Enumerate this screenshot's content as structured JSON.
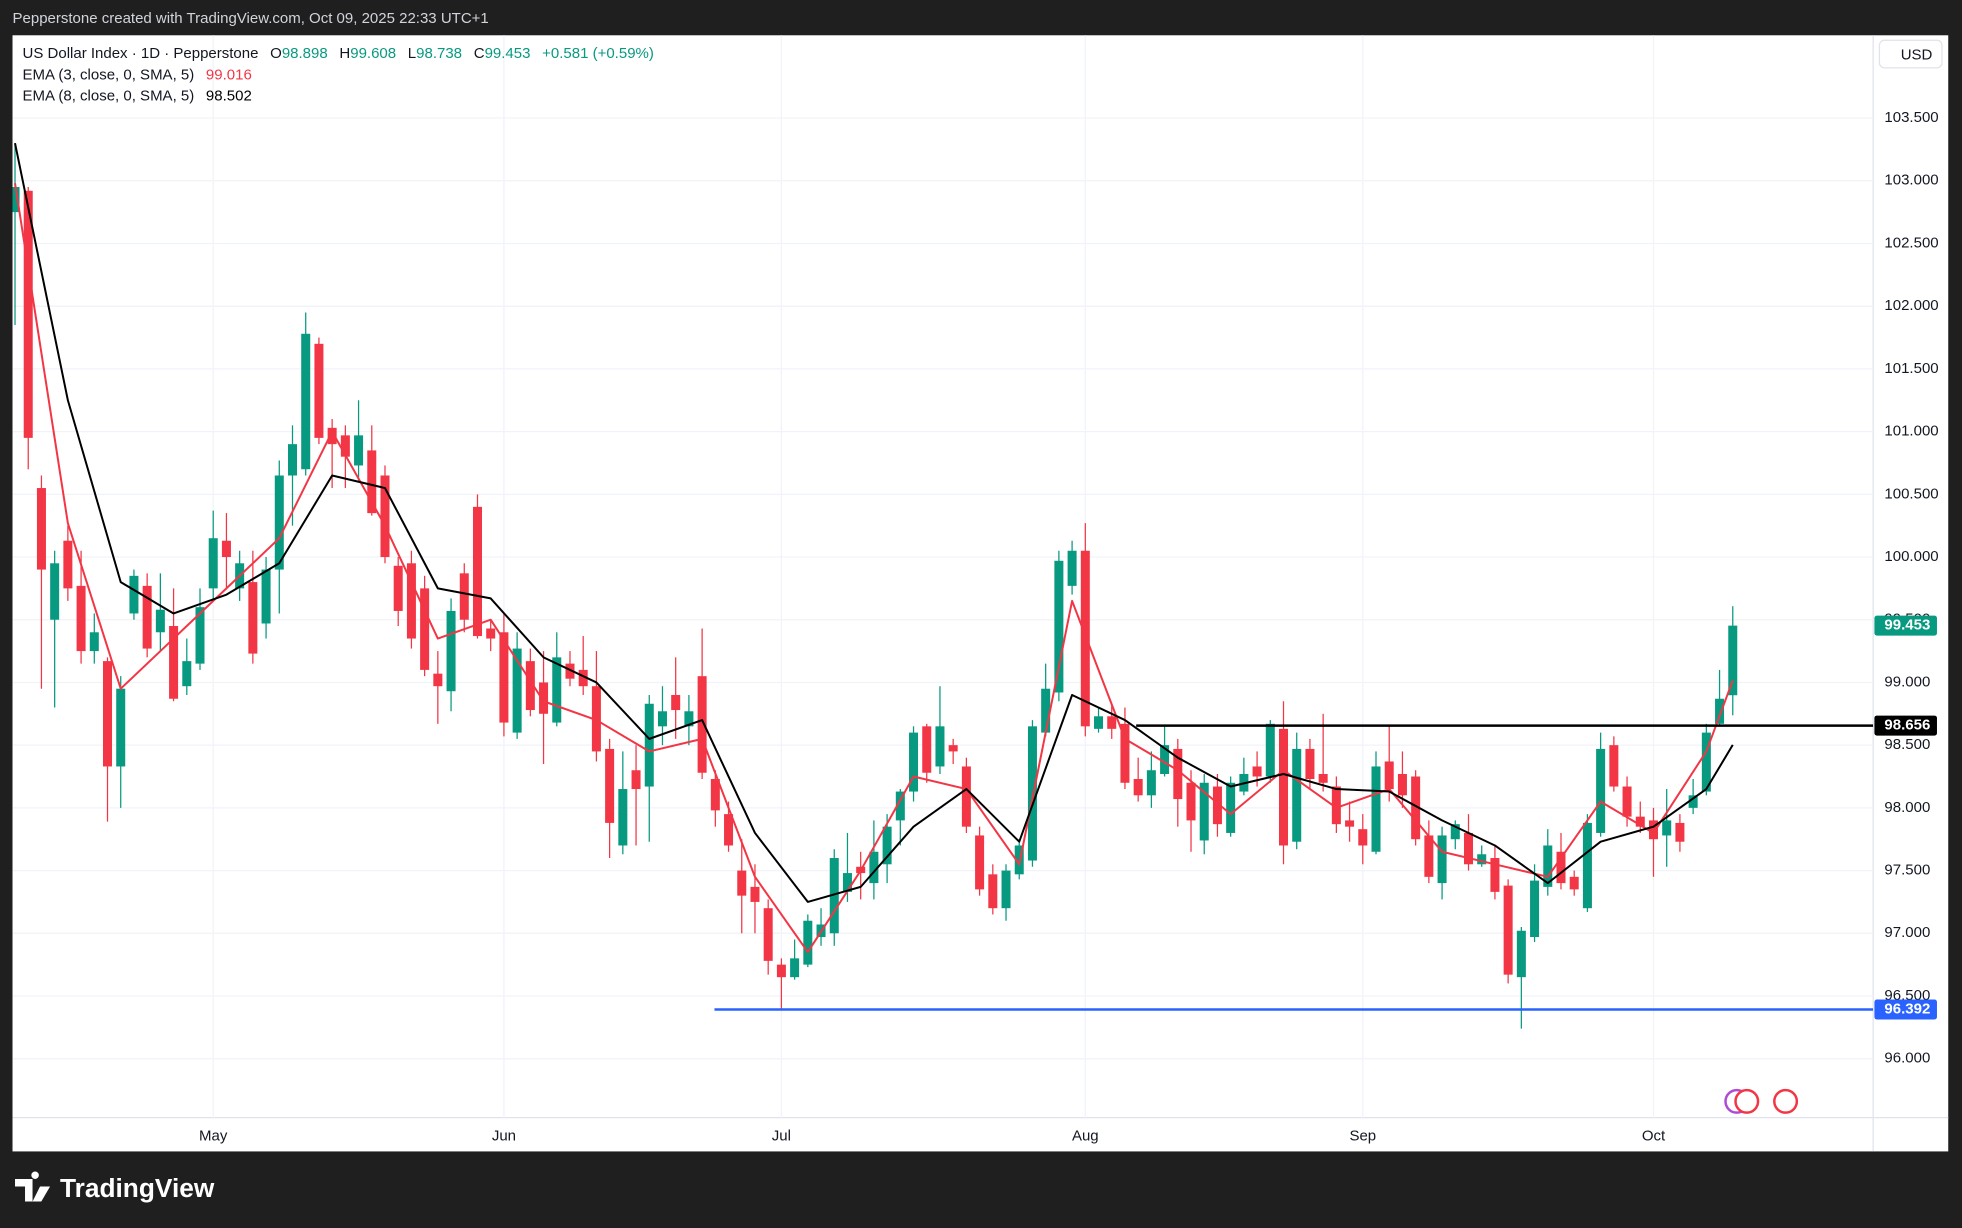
{
  "header": {
    "attribution": "Pepperstone created with TradingView.com, Oct 09, 2025 22:33 UTC+1",
    "brand": "TradingView"
  },
  "chart_data": {
    "type": "candlestick",
    "title": "US Dollar Index · 1D · Pepperstone",
    "currency": "USD",
    "ohlc_labels": [
      "O",
      "H",
      "L",
      "C"
    ],
    "change_label": "+0.581 (+0.59%)",
    "categories": [
      null,
      null,
      null,
      null,
      null,
      null,
      null,
      null,
      null,
      null,
      null,
      null,
      null,
      null,
      null,
      "May",
      null,
      null,
      null,
      null,
      null,
      null,
      null,
      null,
      null,
      null,
      null,
      null,
      null,
      null,
      null,
      null,
      null,
      null,
      null,
      null,
      null,
      "Jun",
      null,
      null,
      null,
      null,
      null,
      null,
      null,
      null,
      null,
      null,
      null,
      null,
      null,
      null,
      null,
      null,
      null,
      null,
      null,
      null,
      "Jul",
      null,
      null,
      null,
      null,
      null,
      null,
      null,
      null,
      null,
      null,
      null,
      null,
      null,
      null,
      null,
      null,
      null,
      null,
      null,
      null,
      null,
      null,
      "Aug",
      null,
      null,
      null,
      null,
      null,
      null,
      null,
      null,
      null,
      null,
      null,
      null,
      null,
      null,
      null,
      null,
      null,
      null,
      null,
      null,
      "Sep",
      null,
      null,
      null,
      null,
      null,
      null,
      null,
      null,
      null,
      null,
      null,
      null,
      null,
      null,
      null,
      null,
      null,
      null,
      null,
      null,
      null,
      "Oct",
      null,
      null,
      null,
      null,
      null,
      null
    ],
    "open": [
      102.75,
      102.92,
      100.55,
      99.5,
      100.13,
      99.77,
      99.25,
      99.17,
      98.33,
      99.55,
      99.77,
      99.4,
      99.45,
      98.97,
      99.15,
      99.75,
      100.13,
      99.75,
      99.8,
      99.47,
      99.9,
      100.65,
      100.7,
      101.7,
      101.03,
      100.97,
      100.73,
      100.85,
      100.65,
      99.93,
      99.95,
      99.75,
      99.07,
      98.93,
      99.87,
      100.4,
      99.43,
      99.4,
      98.6,
      99.17,
      99.0,
      98.68,
      99.15,
      99.1,
      98.97,
      98.47,
      97.7,
      98.3,
      98.17,
      98.65,
      98.9,
      98.65,
      99.05,
      98.23,
      97.95,
      97.5,
      97.37,
      97.2,
      96.75,
      96.65,
      96.75,
      96.97,
      97.0,
      97.33,
      97.53,
      97.4,
      97.55,
      97.9,
      98.13,
      98.65,
      98.33,
      98.5,
      98.33,
      97.78,
      97.47,
      97.2,
      97.47,
      97.58,
      98.6,
      98.92,
      99.77,
      100.05,
      98.63,
      98.73,
      98.67,
      98.23,
      98.1,
      98.27,
      98.47,
      98.2,
      97.74,
      98.17,
      97.8,
      98.13,
      98.33,
      98.25,
      98.63,
      97.73,
      98.47,
      98.27,
      98.17,
      97.9,
      97.83,
      97.65,
      98.37,
      98.27,
      98.25,
      97.78,
      97.4,
      97.75,
      97.8,
      97.55,
      97.6,
      97.38,
      96.65,
      96.97,
      97.37,
      97.65,
      97.45,
      97.2,
      97.8,
      98.5,
      98.17,
      97.93,
      97.9,
      97.78,
      97.88,
      98.0,
      98.13,
      98.67,
      98.898
    ],
    "high": [
      103.3,
      102.95,
      100.65,
      100.05,
      100.25,
      100.05,
      99.55,
      99.2,
      99.05,
      99.9,
      99.87,
      99.87,
      99.75,
      99.35,
      99.75,
      100.37,
      100.35,
      100.05,
      100.05,
      100.0,
      100.77,
      101.05,
      101.95,
      101.75,
      101.1,
      101.05,
      101.25,
      101.05,
      100.73,
      100.0,
      100.05,
      99.85,
      99.25,
      99.67,
      99.95,
      100.5,
      99.5,
      99.55,
      99.4,
      99.27,
      99.25,
      99.4,
      99.25,
      99.37,
      99.25,
      98.55,
      98.45,
      98.5,
      98.9,
      98.97,
      99.2,
      98.9,
      99.43,
      98.3,
      98.05,
      97.75,
      97.55,
      97.27,
      96.8,
      96.95,
      97.15,
      97.2,
      97.67,
      97.8,
      97.65,
      97.9,
      97.95,
      98.15,
      98.65,
      98.67,
      98.97,
      98.55,
      98.4,
      97.85,
      97.55,
      97.55,
      97.75,
      98.7,
      99.15,
      100.05,
      100.13,
      100.27,
      98.8,
      98.83,
      98.8,
      98.4,
      98.45,
      98.65,
      98.55,
      98.3,
      98.27,
      98.27,
      98.25,
      98.4,
      98.45,
      98.7,
      98.85,
      98.6,
      98.55,
      98.75,
      98.25,
      98.05,
      97.95,
      98.45,
      98.65,
      98.45,
      98.3,
      97.9,
      97.85,
      97.9,
      97.95,
      97.7,
      97.7,
      97.43,
      97.05,
      97.55,
      97.83,
      97.8,
      97.5,
      97.95,
      98.6,
      98.57,
      98.25,
      98.05,
      98.0,
      98.15,
      97.95,
      98.23,
      98.67,
      99.1,
      99.608
    ],
    "low": [
      101.85,
      100.7,
      98.95,
      98.8,
      99.65,
      99.15,
      99.15,
      97.89,
      98.0,
      99.5,
      99.2,
      99.25,
      98.85,
      98.9,
      99.1,
      99.65,
      99.75,
      99.65,
      99.15,
      99.35,
      99.55,
      100.25,
      100.65,
      100.9,
      100.55,
      100.55,
      100.6,
      100.33,
      99.95,
      99.45,
      99.27,
      99.05,
      98.67,
      98.77,
      99.4,
      99.35,
      99.25,
      98.57,
      98.55,
      98.73,
      98.35,
      98.65,
      98.97,
      98.9,
      98.37,
      97.6,
      97.63,
      97.7,
      97.73,
      98.5,
      98.55,
      98.5,
      98.23,
      97.85,
      97.65,
      97.0,
      97.0,
      96.67,
      96.392,
      96.63,
      96.73,
      96.9,
      96.9,
      97.25,
      97.27,
      97.27,
      97.4,
      97.7,
      98.05,
      98.2,
      98.27,
      98.35,
      97.8,
      97.3,
      97.15,
      97.1,
      97.43,
      97.53,
      98.57,
      98.85,
      99.7,
      98.57,
      98.6,
      98.55,
      98.15,
      98.05,
      98.0,
      98.25,
      97.85,
      97.65,
      97.63,
      97.77,
      97.77,
      98.1,
      98.17,
      98.2,
      97.55,
      97.67,
      98.15,
      98.13,
      97.8,
      97.73,
      97.55,
      97.63,
      98.05,
      98.0,
      97.7,
      97.4,
      97.27,
      97.67,
      97.5,
      97.53,
      97.27,
      96.6,
      96.24,
      96.93,
      97.3,
      97.35,
      97.3,
      97.17,
      97.77,
      98.13,
      97.85,
      97.8,
      97.45,
      97.53,
      97.65,
      97.95,
      98.1,
      98.65,
      98.738
    ],
    "close": [
      102.95,
      100.95,
      99.9,
      99.95,
      99.75,
      99.25,
      99.4,
      98.33,
      98.95,
      99.85,
      99.27,
      99.58,
      98.87,
      99.17,
      99.6,
      100.15,
      100.0,
      99.95,
      99.23,
      99.9,
      100.65,
      100.9,
      101.78,
      100.95,
      100.9,
      100.8,
      100.97,
      100.35,
      100.0,
      99.57,
      99.35,
      99.1,
      98.97,
      99.57,
      99.5,
      99.37,
      99.35,
      98.68,
      99.27,
      98.78,
      98.75,
      99.2,
      99.03,
      98.97,
      98.45,
      97.88,
      98.15,
      98.15,
      98.83,
      98.77,
      98.78,
      98.77,
      98.28,
      97.98,
      97.7,
      97.3,
      97.25,
      96.78,
      96.65,
      96.8,
      97.1,
      97.07,
      97.6,
      97.48,
      97.48,
      97.65,
      97.85,
      98.13,
      98.6,
      98.28,
      98.65,
      98.45,
      97.85,
      97.35,
      97.2,
      97.5,
      97.7,
      98.65,
      98.95,
      99.97,
      100.05,
      98.65,
      98.73,
      98.63,
      98.2,
      98.1,
      98.3,
      98.5,
      98.07,
      97.9,
      98.2,
      97.87,
      98.2,
      98.27,
      98.25,
      98.67,
      97.7,
      98.47,
      98.23,
      98.2,
      97.87,
      97.85,
      97.7,
      98.33,
      98.15,
      98.1,
      97.75,
      97.45,
      97.78,
      97.87,
      97.55,
      97.63,
      97.33,
      96.67,
      97.02,
      97.42,
      97.7,
      97.4,
      97.35,
      97.88,
      98.47,
      98.17,
      97.93,
      97.85,
      97.75,
      97.9,
      97.73,
      98.1,
      98.6,
      98.87,
      99.453
    ],
    "up_color": "#089981",
    "down_color": "#f23645",
    "indicators": [
      {
        "type": "line",
        "name": "EMA (3, close, 0, SMA, 5)",
        "color": "#f23645",
        "x": [
          0,
          4,
          8,
          12,
          16,
          20,
          24,
          28,
          32,
          36,
          40,
          44,
          48,
          52,
          56,
          60,
          64,
          68,
          72,
          76,
          80,
          84,
          88,
          92,
          96,
          100,
          104,
          108,
          112,
          116,
          120,
          124,
          128,
          130
        ],
        "values": [
          102.98,
          100.27,
          98.95,
          99.35,
          99.75,
          100.15,
          101.0,
          100.25,
          99.35,
          99.5,
          98.85,
          98.7,
          98.45,
          98.55,
          97.45,
          96.85,
          97.5,
          98.25,
          98.15,
          97.55,
          99.65,
          98.55,
          98.3,
          97.95,
          98.3,
          98.0,
          98.15,
          97.65,
          97.55,
          97.45,
          98.05,
          97.8,
          98.45,
          99.016
        ]
      },
      {
        "type": "line",
        "name": "EMA (8, close, 0, SMA, 5)",
        "color": "#000000",
        "x": [
          0,
          4,
          8,
          12,
          16,
          20,
          24,
          28,
          32,
          36,
          40,
          44,
          48,
          52,
          56,
          60,
          64,
          68,
          72,
          76,
          80,
          84,
          88,
          92,
          96,
          100,
          104,
          108,
          112,
          116,
          120,
          124,
          128,
          130
        ],
        "values": [
          103.3,
          101.25,
          99.8,
          99.55,
          99.7,
          99.95,
          100.65,
          100.55,
          99.75,
          99.67,
          99.2,
          99.0,
          98.55,
          98.7,
          97.8,
          97.25,
          97.37,
          97.85,
          98.15,
          97.73,
          98.9,
          98.7,
          98.4,
          98.17,
          98.27,
          98.15,
          98.13,
          97.9,
          97.7,
          97.4,
          97.73,
          97.85,
          98.15,
          98.502
        ]
      }
    ],
    "hlines": [
      {
        "value": 98.656,
        "color": "#000000"
      },
      {
        "value": 96.392,
        "color": "#2962ff"
      }
    ],
    "ylim": [
      95.53,
      104.16
    ],
    "yticks": [
      {
        "value": 96,
        "label": "96.000"
      },
      {
        "value": 96.5,
        "label": "96.500"
      },
      {
        "value": 97,
        "label": "97.000"
      },
      {
        "value": 97.5,
        "label": "97.500"
      },
      {
        "value": 98,
        "label": "98.000"
      },
      {
        "value": 98.5,
        "label": "98.500"
      },
      {
        "value": 99,
        "label": "99.000"
      },
      {
        "value": 99.5,
        "label": "99.500"
      },
      {
        "value": 100,
        "label": "100.000"
      },
      {
        "value": 100.5,
        "label": "100.500"
      },
      {
        "value": 101,
        "label": "101.000"
      },
      {
        "value": 101.5,
        "label": "101.500"
      },
      {
        "value": 102,
        "label": "102.000"
      },
      {
        "value": 102.5,
        "label": "102.500"
      },
      {
        "value": 103,
        "label": "103.000"
      },
      {
        "value": 103.5,
        "label": "103.500"
      }
    ],
    "grid": true
  }
}
